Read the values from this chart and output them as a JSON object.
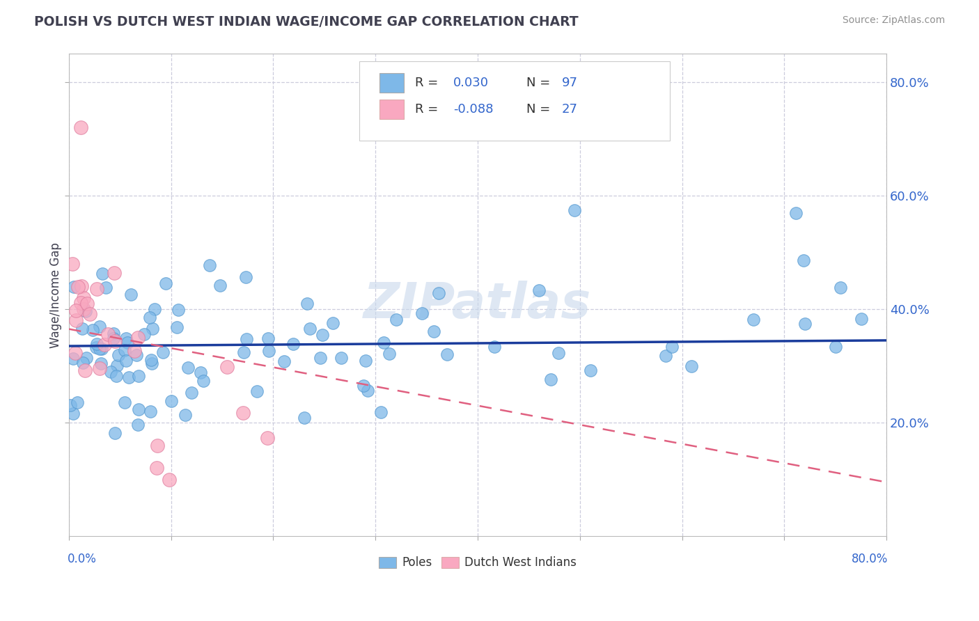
{
  "title": "POLISH VS DUTCH WEST INDIAN WAGE/INCOME GAP CORRELATION CHART",
  "source": "Source: ZipAtlas.com",
  "ylabel": "Wage/Income Gap",
  "ytick_labels": [
    "20.0%",
    "40.0%",
    "60.0%",
    "80.0%"
  ],
  "ytick_values": [
    0.2,
    0.4,
    0.6,
    0.8
  ],
  "xlim": [
    0.0,
    0.8
  ],
  "ylim": [
    0.0,
    0.85
  ],
  "blue_R": 0.03,
  "blue_N": 97,
  "pink_R": -0.088,
  "pink_N": 27,
  "blue_color": "#7EB8E8",
  "pink_color": "#F9A8C0",
  "blue_edge_color": "#5599D0",
  "pink_edge_color": "#E080A0",
  "trendline_blue_color": "#1A3C9C",
  "trendline_pink_color": "#E06080",
  "legend_blue_label": "Poles",
  "legend_pink_label": "Dutch West Indians",
  "background_color": "#FFFFFF",
  "grid_color": "#CCCCDD",
  "title_color": "#404050",
  "source_color": "#909090",
  "watermark": "ZIPatlas",
  "watermark_color": "#C8D8EC",
  "blue_trendline_start_y": 0.335,
  "blue_trendline_end_y": 0.345,
  "pink_trendline_start_y": 0.365,
  "pink_trendline_end_y": 0.095
}
